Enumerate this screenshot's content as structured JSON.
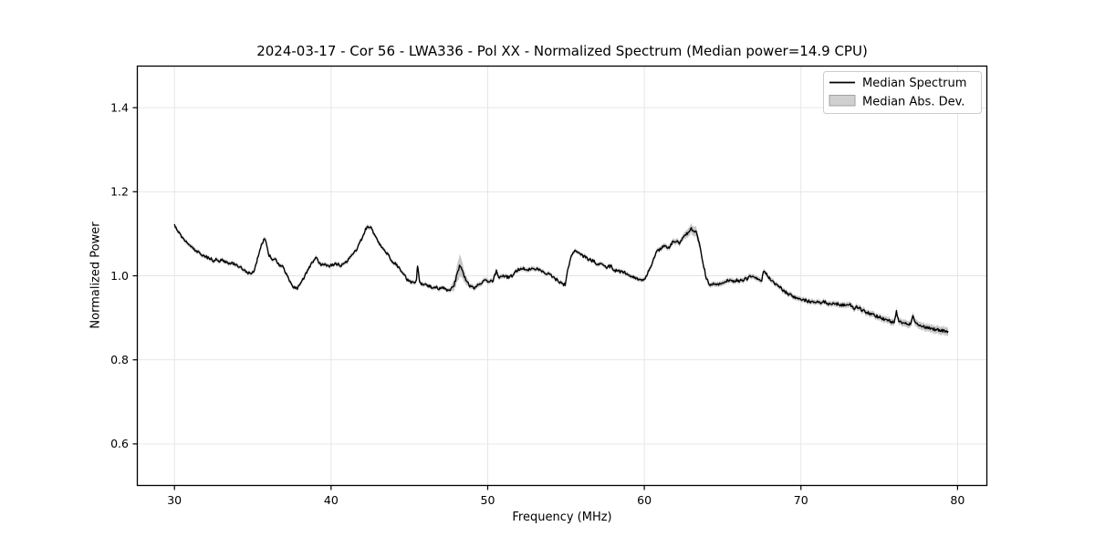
{
  "figure": {
    "title": "2024-03-17 - Cor 56 - LWA336 - Pol XX - Normalized Spectrum (Median power=14.9 CPU)",
    "xlabel": "Frequency (MHz)",
    "ylabel": "Normalized Power"
  },
  "chart_data": {
    "type": "line",
    "title": "2024-03-17 - Cor 56 - LWA336 - Pol XX - Normalized Spectrum (Median power=14.9 CPU)",
    "xlabel": "Frequency (MHz)",
    "ylabel": "Normalized Power",
    "xlim": [
      27.6,
      81.9
    ],
    "ylim": [
      0.5,
      1.5
    ],
    "xticks": [
      30,
      40,
      50,
      60,
      70,
      80
    ],
    "yticks": [
      0.6,
      0.8,
      1.0,
      1.2,
      1.4
    ],
    "grid": true,
    "legend": {
      "position": "upper right",
      "entries": [
        {
          "label": "Median Spectrum",
          "type": "line",
          "color": "#000000"
        },
        {
          "label": "Median Abs. Dev.",
          "type": "patch",
          "color": "#d0d0d0"
        }
      ]
    },
    "series": [
      {
        "name": "Median Spectrum",
        "type": "line",
        "color": "#000000",
        "points": [
          [
            30.0,
            1.121
          ],
          [
            30.15,
            1.112
          ],
          [
            30.3,
            1.103
          ],
          [
            30.5,
            1.091
          ],
          [
            30.7,
            1.082
          ],
          [
            30.9,
            1.075
          ],
          [
            31.1,
            1.068
          ],
          [
            31.3,
            1.06
          ],
          [
            31.5,
            1.056
          ],
          [
            31.7,
            1.052
          ],
          [
            31.9,
            1.047
          ],
          [
            32.1,
            1.044
          ],
          [
            32.3,
            1.04
          ],
          [
            32.5,
            1.036
          ],
          [
            32.7,
            1.04
          ],
          [
            32.9,
            1.034
          ],
          [
            33.1,
            1.038
          ],
          [
            33.3,
            1.032
          ],
          [
            33.5,
            1.03
          ],
          [
            33.7,
            1.029
          ],
          [
            33.9,
            1.026
          ],
          [
            34.1,
            1.023
          ],
          [
            34.3,
            1.018
          ],
          [
            34.5,
            1.012
          ],
          [
            34.7,
            1.007
          ],
          [
            34.9,
            1.005
          ],
          [
            35.1,
            1.013
          ],
          [
            35.3,
            1.04
          ],
          [
            35.5,
            1.068
          ],
          [
            35.7,
            1.086
          ],
          [
            35.8,
            1.089
          ],
          [
            36.0,
            1.052
          ],
          [
            36.2,
            1.04
          ],
          [
            36.45,
            1.04
          ],
          [
            36.65,
            1.027
          ],
          [
            36.9,
            1.022
          ],
          [
            37.1,
            1.008
          ],
          [
            37.35,
            0.988
          ],
          [
            37.6,
            0.974
          ],
          [
            37.8,
            0.968
          ],
          [
            38.0,
            0.978
          ],
          [
            38.2,
            0.99
          ],
          [
            38.5,
            1.012
          ],
          [
            38.8,
            1.031
          ],
          [
            39.05,
            1.042
          ],
          [
            39.35,
            1.026
          ],
          [
            39.6,
            1.028
          ],
          [
            39.85,
            1.023
          ],
          [
            40.1,
            1.025
          ],
          [
            40.35,
            1.028
          ],
          [
            40.6,
            1.024
          ],
          [
            40.85,
            1.03
          ],
          [
            41.1,
            1.038
          ],
          [
            41.35,
            1.048
          ],
          [
            41.6,
            1.062
          ],
          [
            41.8,
            1.075
          ],
          [
            42.0,
            1.092
          ],
          [
            42.2,
            1.11
          ],
          [
            42.35,
            1.118
          ],
          [
            42.55,
            1.113
          ],
          [
            42.75,
            1.098
          ],
          [
            42.95,
            1.086
          ],
          [
            43.2,
            1.07
          ],
          [
            43.45,
            1.056
          ],
          [
            43.65,
            1.051
          ],
          [
            43.85,
            1.035
          ],
          [
            44.1,
            1.028
          ],
          [
            44.35,
            1.018
          ],
          [
            44.6,
            1.005
          ],
          [
            44.85,
            0.991
          ],
          [
            45.1,
            0.985
          ],
          [
            45.3,
            0.983
          ],
          [
            45.45,
            0.987
          ],
          [
            45.52,
            1.025
          ],
          [
            45.65,
            0.983
          ],
          [
            45.9,
            0.98
          ],
          [
            46.15,
            0.976
          ],
          [
            46.4,
            0.973
          ],
          [
            46.65,
            0.974
          ],
          [
            46.9,
            0.97
          ],
          [
            47.15,
            0.972
          ],
          [
            47.4,
            0.967
          ],
          [
            47.6,
            0.968
          ],
          [
            47.8,
            0.972
          ],
          [
            48.0,
            0.997
          ],
          [
            48.2,
            1.022
          ],
          [
            48.35,
            1.015
          ],
          [
            48.5,
            0.999
          ],
          [
            48.7,
            0.984
          ],
          [
            48.9,
            0.974
          ],
          [
            49.1,
            0.97
          ],
          [
            49.35,
            0.977
          ],
          [
            49.6,
            0.984
          ],
          [
            49.85,
            0.988
          ],
          [
            50.1,
            0.985
          ],
          [
            50.35,
            0.99
          ],
          [
            50.55,
            1.011
          ],
          [
            50.7,
            0.998
          ],
          [
            50.9,
            0.996
          ],
          [
            51.1,
            1.0
          ],
          [
            51.3,
            0.996
          ],
          [
            51.55,
            1.0
          ],
          [
            51.75,
            1.011
          ],
          [
            52.0,
            1.015
          ],
          [
            52.3,
            1.018
          ],
          [
            52.6,
            1.015
          ],
          [
            52.9,
            1.018
          ],
          [
            53.2,
            1.015
          ],
          [
            53.5,
            1.011
          ],
          [
            53.75,
            1.006
          ],
          [
            54.0,
            1.001
          ],
          [
            54.25,
            0.995
          ],
          [
            54.5,
            0.987
          ],
          [
            54.75,
            0.981
          ],
          [
            54.95,
            0.979
          ],
          [
            55.1,
            1.01
          ],
          [
            55.25,
            1.037
          ],
          [
            55.45,
            1.057
          ],
          [
            55.6,
            1.06
          ],
          [
            55.8,
            1.055
          ],
          [
            56.1,
            1.047
          ],
          [
            56.4,
            1.04
          ],
          [
            56.7,
            1.036
          ],
          [
            57.0,
            1.028
          ],
          [
            57.3,
            1.025
          ],
          [
            57.6,
            1.02
          ],
          [
            57.85,
            1.023
          ],
          [
            58.05,
            1.014
          ],
          [
            58.3,
            1.011
          ],
          [
            58.6,
            1.009
          ],
          [
            58.9,
            1.005
          ],
          [
            59.15,
            0.999
          ],
          [
            59.4,
            0.994
          ],
          [
            59.65,
            0.99
          ],
          [
            59.9,
            0.988
          ],
          [
            60.1,
            0.998
          ],
          [
            60.3,
            1.012
          ],
          [
            60.55,
            1.034
          ],
          [
            60.8,
            1.058
          ],
          [
            61.1,
            1.066
          ],
          [
            61.35,
            1.073
          ],
          [
            61.55,
            1.066
          ],
          [
            61.8,
            1.08
          ],
          [
            62.05,
            1.084
          ],
          [
            62.25,
            1.078
          ],
          [
            62.55,
            1.094
          ],
          [
            62.8,
            1.104
          ],
          [
            63.0,
            1.112
          ],
          [
            63.2,
            1.107
          ],
          [
            63.35,
            1.101
          ],
          [
            63.55,
            1.072
          ],
          [
            63.75,
            1.03
          ],
          [
            63.95,
            0.996
          ],
          [
            64.15,
            0.979
          ],
          [
            64.4,
            0.982
          ],
          [
            64.65,
            0.978
          ],
          [
            64.9,
            0.981
          ],
          [
            65.15,
            0.985
          ],
          [
            65.4,
            0.99
          ],
          [
            65.6,
            0.985
          ],
          [
            65.85,
            0.989
          ],
          [
            66.1,
            0.988
          ],
          [
            66.35,
            0.99
          ],
          [
            66.6,
            0.994
          ],
          [
            66.85,
            1.0
          ],
          [
            67.1,
            0.996
          ],
          [
            67.35,
            0.989
          ],
          [
            67.5,
            0.986
          ],
          [
            67.6,
            1.013
          ],
          [
            67.85,
            1.001
          ],
          [
            68.1,
            0.99
          ],
          [
            68.35,
            0.982
          ],
          [
            68.6,
            0.974
          ],
          [
            68.9,
            0.964
          ],
          [
            69.2,
            0.956
          ],
          [
            69.5,
            0.951
          ],
          [
            69.8,
            0.946
          ],
          [
            70.1,
            0.943
          ],
          [
            70.45,
            0.94
          ],
          [
            70.8,
            0.937
          ],
          [
            71.15,
            0.936
          ],
          [
            71.5,
            0.938
          ],
          [
            71.8,
            0.933
          ],
          [
            72.1,
            0.935
          ],
          [
            72.4,
            0.932
          ],
          [
            72.7,
            0.931
          ],
          [
            72.95,
            0.928
          ],
          [
            73.15,
            0.931
          ],
          [
            73.4,
            0.922
          ],
          [
            73.65,
            0.927
          ],
          [
            73.9,
            0.918
          ],
          [
            74.2,
            0.913
          ],
          [
            74.5,
            0.908
          ],
          [
            74.8,
            0.904
          ],
          [
            75.1,
            0.9
          ],
          [
            75.4,
            0.896
          ],
          [
            75.7,
            0.892
          ],
          [
            75.95,
            0.888
          ],
          [
            76.1,
            0.915
          ],
          [
            76.25,
            0.891
          ],
          [
            76.5,
            0.889
          ],
          [
            76.8,
            0.886
          ],
          [
            77.0,
            0.884
          ],
          [
            77.15,
            0.905
          ],
          [
            77.3,
            0.886
          ],
          [
            77.6,
            0.882
          ],
          [
            77.9,
            0.879
          ],
          [
            78.2,
            0.876
          ],
          [
            78.5,
            0.873
          ],
          [
            78.8,
            0.871
          ],
          [
            79.05,
            0.869
          ],
          [
            79.25,
            0.867
          ],
          [
            79.4,
            0.866
          ]
        ]
      },
      {
        "name": "Median Abs. Dev.",
        "type": "band",
        "color": "#c7c7c7",
        "around": "Median Spectrum",
        "halfwidth_points": [
          [
            30,
            0.005
          ],
          [
            40,
            0.005
          ],
          [
            47.6,
            0.005
          ],
          [
            47.95,
            0.016
          ],
          [
            48.2,
            0.027
          ],
          [
            48.5,
            0.014
          ],
          [
            48.8,
            0.006
          ],
          [
            55,
            0.005
          ],
          [
            60,
            0.005
          ],
          [
            62.4,
            0.007
          ],
          [
            62.9,
            0.011
          ],
          [
            63.35,
            0.012
          ],
          [
            63.8,
            0.006
          ],
          [
            68,
            0.006
          ],
          [
            71,
            0.006
          ],
          [
            74,
            0.007
          ],
          [
            76,
            0.008
          ],
          [
            78,
            0.009
          ],
          [
            79.4,
            0.01
          ]
        ]
      }
    ],
    "style": {
      "noise_amplitude": 0.0035,
      "grid_color": "#e4e4e4",
      "spine_color": "#000000",
      "background": "#ffffff",
      "line_width": 1.4
    }
  }
}
